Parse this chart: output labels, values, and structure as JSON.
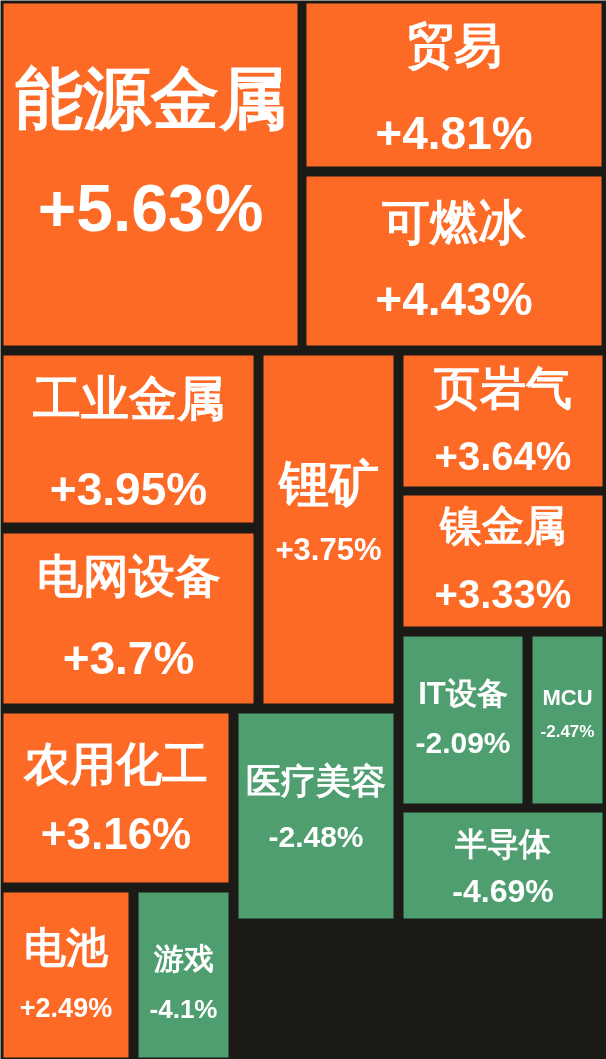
{
  "chart_data": {
    "type": "other",
    "categories": [
      "能源金属",
      "贸易",
      "可燃冰",
      "工业金属",
      "电网设备",
      "锂矿",
      "页岩气",
      "镍金属",
      "IT设备",
      "MCU",
      "半导体",
      "医疗美容",
      "农用化工",
      "电池",
      "游戏"
    ],
    "values": [
      5.63,
      4.81,
      4.43,
      3.95,
      3.7,
      3.75,
      3.64,
      3.33,
      -2.09,
      -2.47,
      -4.69,
      -2.48,
      3.16,
      2.49,
      -4.1
    ],
    "value_labels": [
      "+5.63%",
      "+4.81%",
      "+4.43%",
      "+3.95%",
      "+3.7%",
      "+3.75%",
      "+3.64%",
      "+3.33%",
      "-2.09%",
      "-2.47%",
      "-4.69%",
      "-2.48%",
      "+3.16%",
      "+2.49%",
      "-4.1%"
    ],
    "colors": [
      "#fd6a26",
      "#fd6a26",
      "#fd6a26",
      "#fd6a26",
      "#fd6a26",
      "#fd6a26",
      "#fd6a26",
      "#fd6a26",
      "#4f9e70",
      "#4f9e70",
      "#4f9e70",
      "#4f9e70",
      "#fd6a26",
      "#fd6a26",
      "#4f9e70"
    ]
  }
}
